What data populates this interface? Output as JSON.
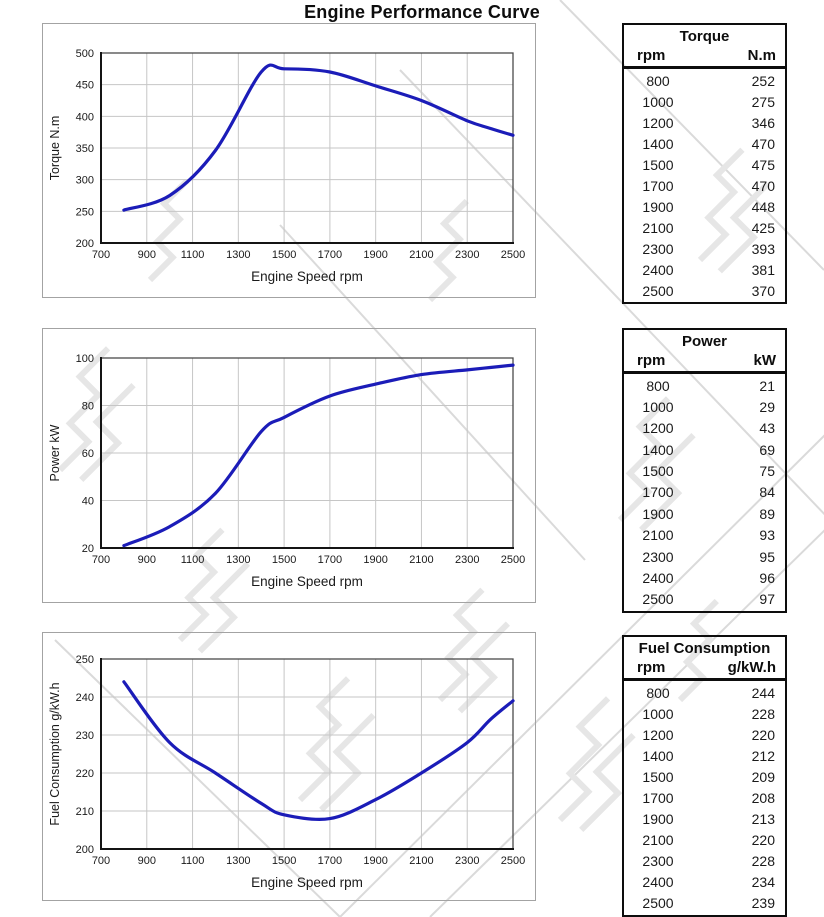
{
  "page": {
    "title": "Engine Performance Curve"
  },
  "chart_data": [
    {
      "id": "torque",
      "type": "line",
      "title": "",
      "xlabel": "Engine Speed rpm",
      "ylabel": "Torque N.m",
      "x": [
        800,
        1000,
        1200,
        1400,
        1500,
        1700,
        1900,
        2100,
        2300,
        2400,
        2500
      ],
      "y": [
        252,
        275,
        346,
        470,
        475,
        470,
        448,
        425,
        393,
        381,
        370
      ],
      "xlim": [
        700,
        2500
      ],
      "ylim": [
        200,
        500
      ],
      "xticks": [
        700,
        900,
        1100,
        1300,
        1500,
        1700,
        1900,
        2100,
        2300,
        2500
      ],
      "yticks": [
        200,
        250,
        300,
        350,
        400,
        450,
        500
      ],
      "grid": true,
      "legend": "none"
    },
    {
      "id": "power",
      "type": "line",
      "title": "",
      "xlabel": "Engine Speed rpm",
      "ylabel": "Power kW",
      "x": [
        800,
        1000,
        1200,
        1400,
        1500,
        1700,
        1900,
        2100,
        2300,
        2400,
        2500
      ],
      "y": [
        21,
        29,
        43,
        69,
        75,
        84,
        89,
        93,
        95,
        96,
        97
      ],
      "xlim": [
        700,
        2500
      ],
      "ylim": [
        20,
        100
      ],
      "xticks": [
        700,
        900,
        1100,
        1300,
        1500,
        1700,
        1900,
        2100,
        2300,
        2500
      ],
      "yticks": [
        20,
        40,
        60,
        80,
        100
      ],
      "grid": true,
      "legend": "none"
    },
    {
      "id": "fuel-consumption",
      "type": "line",
      "title": "",
      "xlabel": "Engine Speed rpm",
      "ylabel": "Fuel Consumption g/kW.h",
      "x": [
        800,
        1000,
        1200,
        1400,
        1500,
        1700,
        1900,
        2100,
        2300,
        2400,
        2500
      ],
      "y": [
        244,
        228,
        220,
        212,
        209,
        208,
        213,
        220,
        228,
        234,
        239
      ],
      "xlim": [
        700,
        2500
      ],
      "ylim": [
        200,
        250
      ],
      "xticks": [
        700,
        900,
        1100,
        1300,
        1500,
        1700,
        1900,
        2100,
        2300,
        2500
      ],
      "yticks": [
        200,
        210,
        220,
        230,
        240,
        250
      ],
      "grid": true,
      "legend": "none"
    }
  ],
  "tables": [
    {
      "title": "Torque",
      "col1": "rpm",
      "col2": "N.m",
      "rows": [
        [
          "800",
          "252"
        ],
        [
          "1000",
          "275"
        ],
        [
          "1200",
          "346"
        ],
        [
          "1400",
          "470"
        ],
        [
          "1500",
          "475"
        ],
        [
          "1700",
          "470"
        ],
        [
          "1900",
          "448"
        ],
        [
          "2100",
          "425"
        ],
        [
          "2300",
          "393"
        ],
        [
          "2400",
          "381"
        ],
        [
          "2500",
          "370"
        ]
      ]
    },
    {
      "title": "Power",
      "col1": "rpm",
      "col2": "kW",
      "rows": [
        [
          "800",
          "21"
        ],
        [
          "1000",
          "29"
        ],
        [
          "1200",
          "43"
        ],
        [
          "1400",
          "69"
        ],
        [
          "1500",
          "75"
        ],
        [
          "1700",
          "84"
        ],
        [
          "1900",
          "89"
        ],
        [
          "2100",
          "93"
        ],
        [
          "2300",
          "95"
        ],
        [
          "2400",
          "96"
        ],
        [
          "2500",
          "97"
        ]
      ]
    },
    {
      "title": "Fuel Consumption",
      "col1": "rpm",
      "col2": "g/kW.h",
      "rows": [
        [
          "800",
          "244"
        ],
        [
          "1000",
          "228"
        ],
        [
          "1200",
          "220"
        ],
        [
          "1400",
          "212"
        ],
        [
          "1500",
          "209"
        ],
        [
          "1700",
          "208"
        ],
        [
          "1900",
          "213"
        ],
        [
          "2100",
          "220"
        ],
        [
          "2300",
          "228"
        ],
        [
          "2400",
          "234"
        ],
        [
          "2500",
          "239"
        ]
      ]
    }
  ],
  "colors": {
    "curve": "#1b1cb8",
    "grid": "#c6c6c6",
    "plot_border": "#4a4a4a",
    "axis": "#141414",
    "text": "#1a1a1a",
    "watermark": "#e5e5e5"
  }
}
